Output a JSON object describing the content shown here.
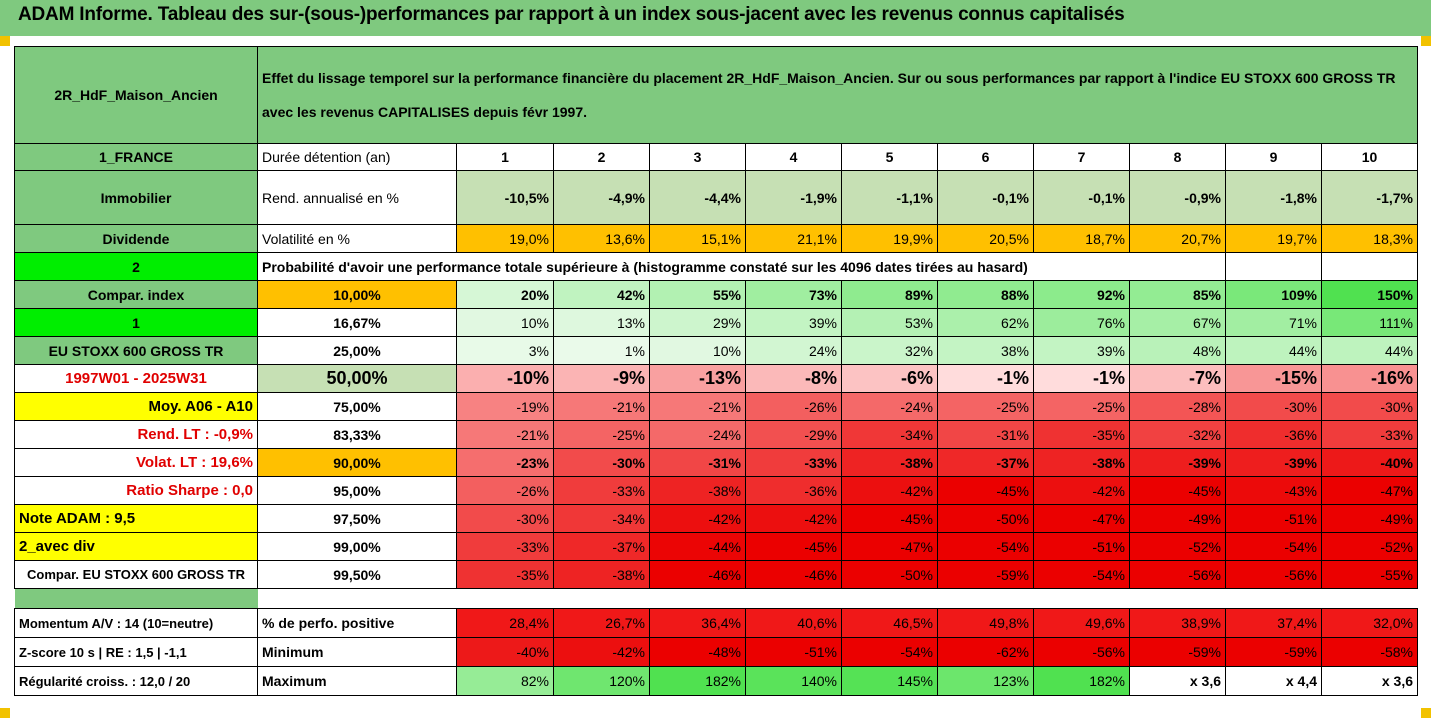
{
  "title": "ADAM Informe. Tableau des sur-(sous-)performances par rapport à un index sous-jacent avec les revenus connus capitalisés",
  "asset_name": "2R_HdF_Maison_Ancien",
  "description": "Effet du lissage temporel sur la performance financière du placement 2R_HdF_Maison_Ancien. Sur ou sous performances par rapport à l'indice EU STOXX 600 GROSS TR avec les revenus CAPITALISES depuis févr 1997.",
  "left_labels": {
    "country": "1_FRANCE",
    "category": "Immobilier",
    "dividend": "Dividende",
    "two": "2",
    "compar_index": "Compar. index",
    "one": "1",
    "index_name": "EU STOXX 600 GROSS TR",
    "period": "1997W01 - 2025W31",
    "moy": "Moy. A06 - A10",
    "rend_lt": "Rend. LT :   -0,9%",
    "volat_lt": "Volat. LT :   19,6%",
    "sharpe": "Ratio Sharpe :    0,0",
    "note": "Note ADAM : 9,5",
    "avec_div": "2_avec div",
    "compar_full": "Compar. EU STOXX 600 GROSS TR",
    "momentum": "Momentum A/V : 14 (10=neutre)",
    "zscore": "Z-score 10 s  |  RE : 1,5  |  -1,1",
    "regularite": "Régularité croiss. : 12,0 / 20"
  },
  "row_labels": {
    "duree": "Durée détention (an)",
    "rend": "Rend. annualisé en %",
    "volat": "Volatilité en %",
    "proba": "Probabilité d'avoir une performance totale supérieure à (histogramme constaté sur les 4096 dates tirées au hasard)",
    "pct_pos": "% de perfo. positive",
    "minimum": "Minimum",
    "maximum": "Maximum"
  },
  "years": [
    "1",
    "2",
    "3",
    "4",
    "5",
    "6",
    "7",
    "8",
    "9",
    "10"
  ],
  "rend": [
    "-10,5%",
    "-4,9%",
    "-4,4%",
    "-1,9%",
    "-1,1%",
    "-0,1%",
    "-0,1%",
    "-0,9%",
    "-1,8%",
    "-1,7%"
  ],
  "volat": [
    "19,0%",
    "13,6%",
    "15,1%",
    "21,1%",
    "19,9%",
    "20,5%",
    "18,7%",
    "20,7%",
    "19,7%",
    "18,3%"
  ],
  "quantile_rows": [
    {
      "q": "10,00%",
      "values": [
        "20%",
        "42%",
        "55%",
        "73%",
        "89%",
        "88%",
        "92%",
        "85%",
        "109%",
        "150%"
      ]
    },
    {
      "q": "16,67%",
      "values": [
        "10%",
        "13%",
        "29%",
        "39%",
        "53%",
        "62%",
        "76%",
        "67%",
        "71%",
        "111%"
      ]
    },
    {
      "q": "25,00%",
      "values": [
        "3%",
        "1%",
        "10%",
        "24%",
        "32%",
        "38%",
        "39%",
        "48%",
        "44%",
        "44%"
      ]
    },
    {
      "q": "50,00%",
      "values": [
        "-10%",
        "-9%",
        "-13%",
        "-8%",
        "-6%",
        "-1%",
        "-1%",
        "-7%",
        "-15%",
        "-16%"
      ]
    },
    {
      "q": "75,00%",
      "values": [
        "-19%",
        "-21%",
        "-21%",
        "-26%",
        "-24%",
        "-25%",
        "-25%",
        "-28%",
        "-30%",
        "-30%"
      ]
    },
    {
      "q": "83,33%",
      "values": [
        "-21%",
        "-25%",
        "-24%",
        "-29%",
        "-34%",
        "-31%",
        "-35%",
        "-32%",
        "-36%",
        "-33%"
      ]
    },
    {
      "q": "90,00%",
      "values": [
        "-23%",
        "-30%",
        "-31%",
        "-33%",
        "-38%",
        "-37%",
        "-38%",
        "-39%",
        "-39%",
        "-40%"
      ]
    },
    {
      "q": "95,00%",
      "values": [
        "-26%",
        "-33%",
        "-38%",
        "-36%",
        "-42%",
        "-45%",
        "-42%",
        "-45%",
        "-43%",
        "-47%"
      ]
    },
    {
      "q": "97,50%",
      "values": [
        "-30%",
        "-34%",
        "-42%",
        "-42%",
        "-45%",
        "-50%",
        "-47%",
        "-49%",
        "-51%",
        "-49%"
      ]
    },
    {
      "q": "99,00%",
      "values": [
        "-33%",
        "-37%",
        "-44%",
        "-45%",
        "-47%",
        "-54%",
        "-51%",
        "-52%",
        "-54%",
        "-52%"
      ]
    },
    {
      "q": "99,50%",
      "values": [
        "-35%",
        "-38%",
        "-46%",
        "-46%",
        "-50%",
        "-59%",
        "-54%",
        "-56%",
        "-56%",
        "-55%"
      ]
    }
  ],
  "pct_pos": [
    "28,4%",
    "26,7%",
    "36,4%",
    "40,6%",
    "46,5%",
    "49,8%",
    "49,6%",
    "38,9%",
    "37,4%",
    "32,0%"
  ],
  "minimum": [
    "-40%",
    "-42%",
    "-48%",
    "-51%",
    "-54%",
    "-62%",
    "-56%",
    "-59%",
    "-59%",
    "-58%"
  ],
  "maximum": [
    "82%",
    "120%",
    "182%",
    "140%",
    "145%",
    "123%",
    "182%",
    "x 3,6",
    "x 4,4",
    "x 3,6"
  ]
}
